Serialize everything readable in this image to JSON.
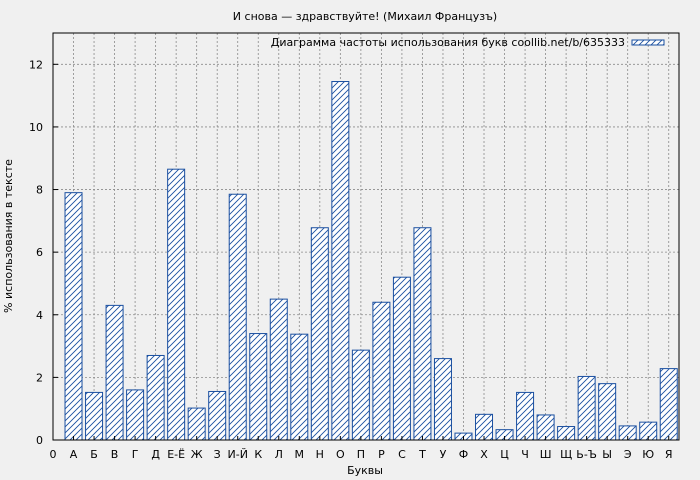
{
  "chart_data": {
    "type": "bar",
    "title": "И снова — здравствуйте! (Михаил Французъ)",
    "xlabel": "Буквы",
    "ylabel": "% использования в тексте",
    "legend": {
      "label": "Диаграмма частоты использования букв coollib.net/b/635333",
      "placement": "top-right"
    },
    "ylim": [
      0,
      13
    ],
    "yticks": [
      0,
      2,
      4,
      6,
      8,
      10,
      12
    ],
    "grid": true,
    "bar_color": "#1a4fa0",
    "x_zero_label": "0",
    "categories": [
      "А",
      "Б",
      "В",
      "Г",
      "Д",
      "Е-Ё",
      "Ж",
      "З",
      "И-Й",
      "К",
      "Л",
      "М",
      "Н",
      "О",
      "П",
      "Р",
      "С",
      "Т",
      "У",
      "Ф",
      "Х",
      "Ц",
      "Ч",
      "Ш",
      "Щ",
      "Ь-Ъ",
      "Ы",
      "Э",
      "Ю",
      "Я"
    ],
    "values": [
      7.9,
      1.52,
      4.3,
      1.6,
      2.7,
      8.65,
      1.02,
      1.55,
      7.85,
      3.4,
      4.5,
      3.38,
      6.78,
      11.45,
      2.87,
      4.4,
      5.2,
      6.78,
      2.6,
      0.22,
      0.82,
      0.33,
      1.52,
      0.8,
      0.43,
      2.03,
      1.8,
      0.45,
      0.57,
      2.28
    ]
  }
}
